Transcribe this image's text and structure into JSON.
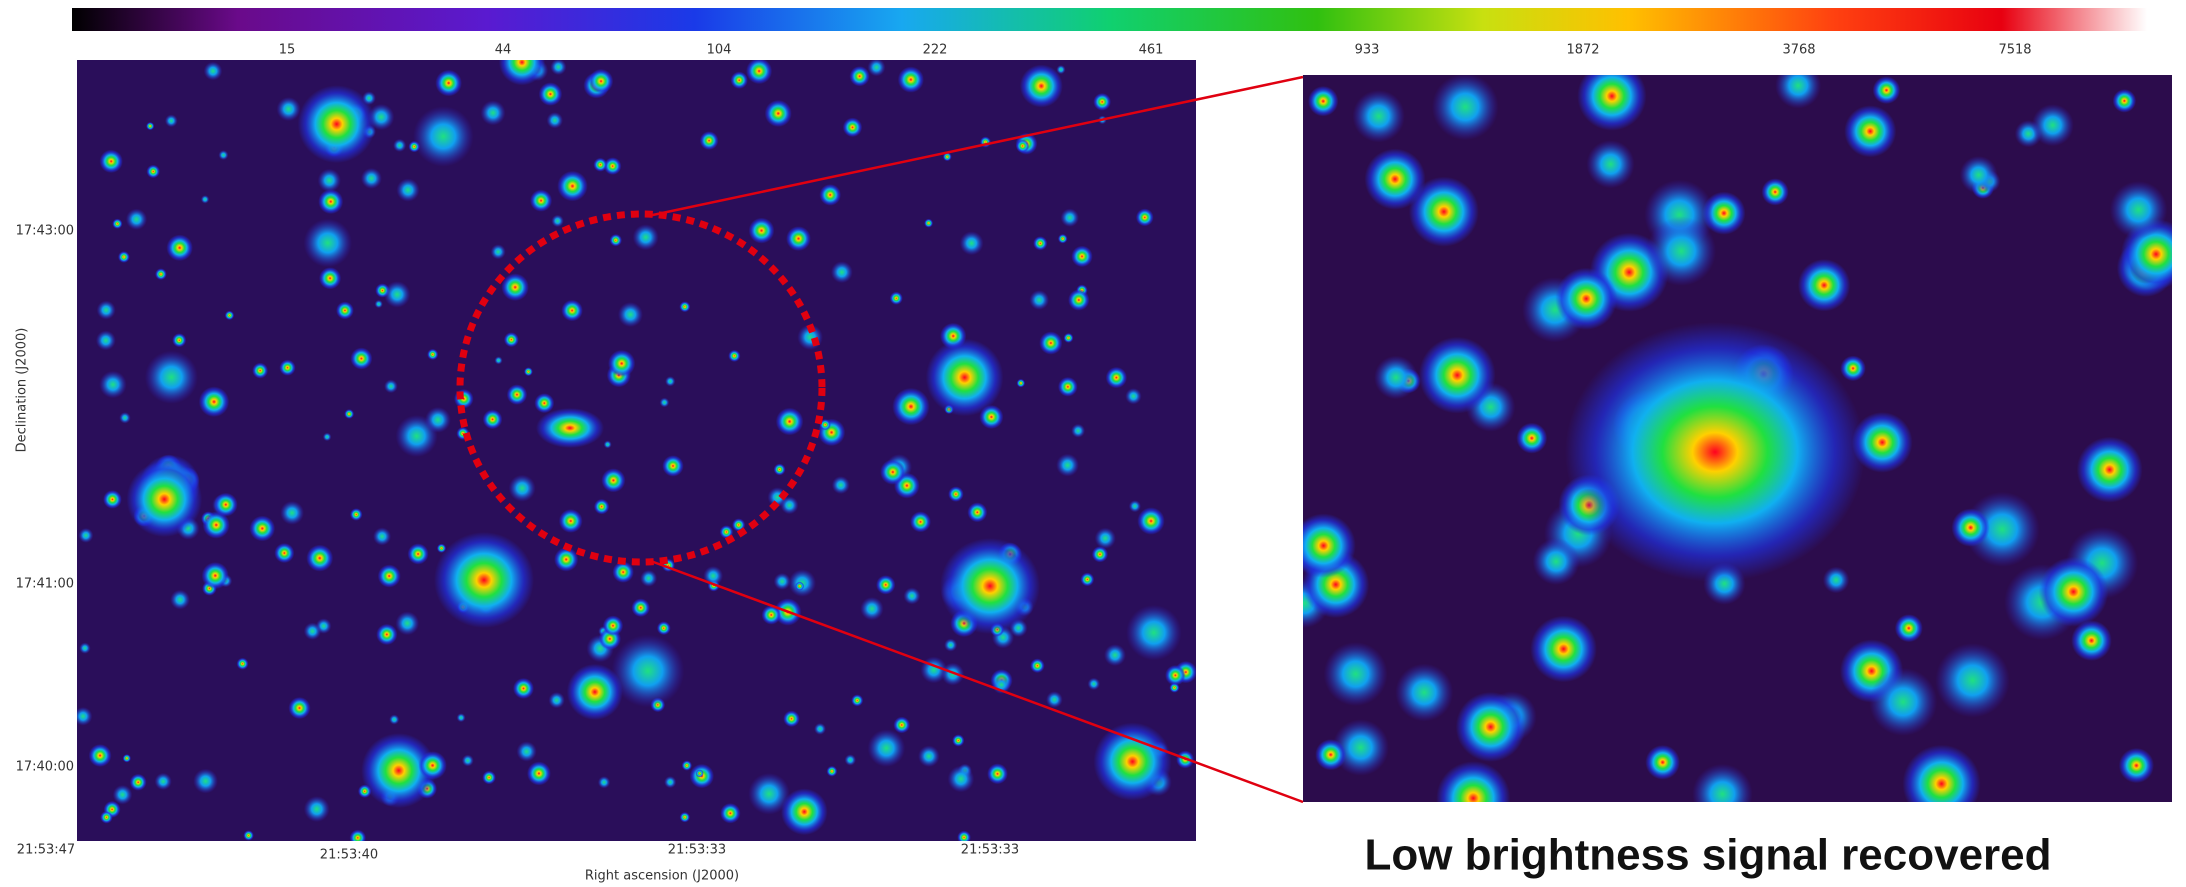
{
  "colorbar": {
    "ticks": [
      15,
      44,
      104,
      222,
      461,
      933,
      1872,
      3768,
      7518
    ]
  },
  "left_panel": {
    "y_axis": {
      "label": "Declination (J2000)",
      "ticks": [
        "17:43:00",
        "17:41:00",
        "17:40:00"
      ]
    },
    "x_axis": {
      "label": "Right ascension (J2000)",
      "ticks": [
        "21:53:47",
        "21:53:40",
        "21:53:33",
        "21:53:33"
      ]
    }
  },
  "caption": "Low brightness signal recovered"
}
